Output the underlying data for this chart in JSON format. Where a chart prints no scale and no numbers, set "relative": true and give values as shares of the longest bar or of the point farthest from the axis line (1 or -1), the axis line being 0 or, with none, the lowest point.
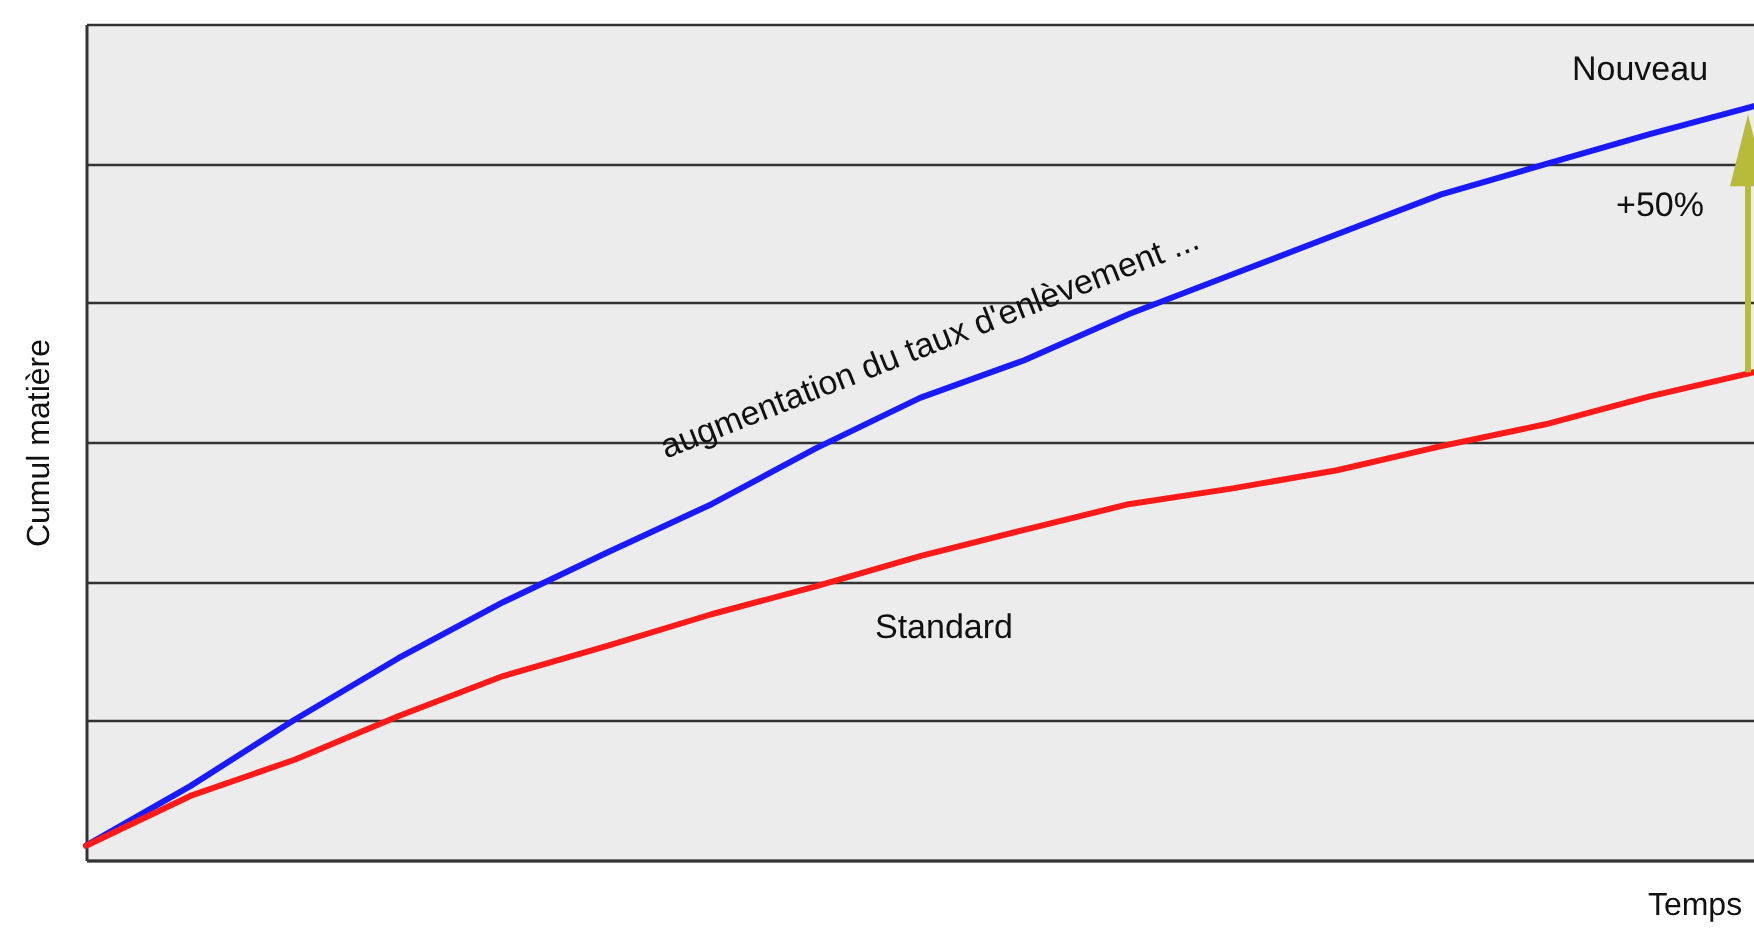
{
  "chart_data": {
    "type": "line",
    "relative": true,
    "xlabel": "Temps",
    "ylabel": "Cumul matière",
    "grid": "y",
    "categories": [
      null,
      null,
      null,
      null,
      null,
      null,
      null,
      null,
      null,
      null,
      null,
      null,
      null,
      null,
      null,
      null,
      null
    ],
    "series": [
      {
        "name": "Nouveau",
        "color": "#1a1aff",
        "values": [
          0.019,
          0.098,
          0.186,
          0.268,
          0.342,
          0.408,
          0.472,
          0.546,
          0.613,
          0.663,
          0.724,
          0.777,
          0.83,
          0.883,
          0.923,
          0.963,
          1
        ]
      },
      {
        "name": "Standard",
        "color": "#ff1a1a",
        "values": [
          0.019,
          0.085,
          0.133,
          0.191,
          0.244,
          0.284,
          0.326,
          0.363,
          0.403,
          0.438,
          0.472,
          0.493,
          0.517,
          0.549,
          0.578,
          0.615,
          0.647
        ]
      }
    ],
    "annotations": [
      "augmentation du taux d'enlèvement ...",
      "+50%"
    ]
  }
}
